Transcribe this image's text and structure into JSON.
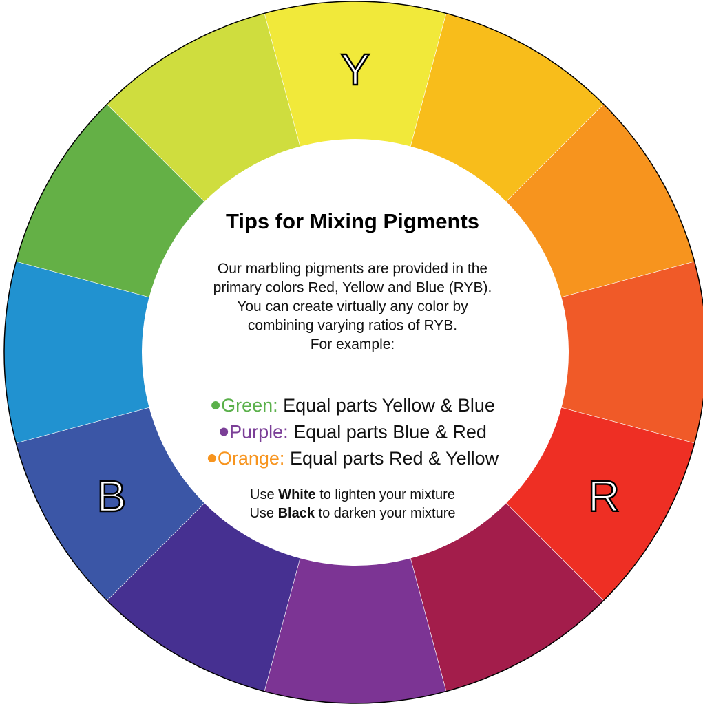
{
  "title": "Tips for Mixing Pigments",
  "intro": [
    "Our marbling pigments are provided in the",
    "primary colors Red, Yellow and Blue (RYB).",
    "You can create virtually any color by",
    "combining varying ratios of RYB.",
    "For example:"
  ],
  "mixes": [
    {
      "name": "Green:",
      "text": "Equal parts Yellow & Blue"
    },
    {
      "name": "Purple:",
      "text": "Equal parts Blue & Red"
    },
    {
      "name": "Orange:",
      "text": "Equal parts Red & Yellow"
    }
  ],
  "tips": [
    {
      "before": "Use",
      "bold": "White",
      "after": "to lighten your mixture"
    },
    {
      "before": "Use",
      "bold": "Black",
      "after": "to darken your mixture"
    }
  ],
  "labels": {
    "yellow": "Y",
    "blue": "B",
    "red": "R"
  }
}
